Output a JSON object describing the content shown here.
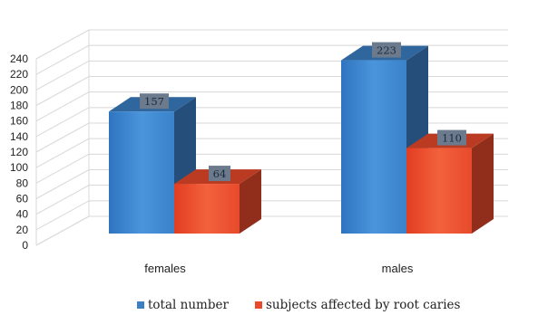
{
  "chart_data": {
    "type": "bar",
    "categories": [
      "females",
      "males"
    ],
    "series": [
      {
        "name": "total number",
        "values": [
          157,
          223
        ],
        "color": "#3b7fc4"
      },
      {
        "name": "subjects affected by root caries",
        "values": [
          64,
          110
        ],
        "color": "#e84a2b"
      }
    ],
    "ylim": [
      0,
      240
    ],
    "yticks": [
      0,
      20,
      40,
      60,
      80,
      100,
      120,
      140,
      160,
      180,
      200,
      220,
      240
    ],
    "grid": true,
    "legend_position": "bottom",
    "style": "3d-columns",
    "data_label_color": "#6b7a8c"
  }
}
